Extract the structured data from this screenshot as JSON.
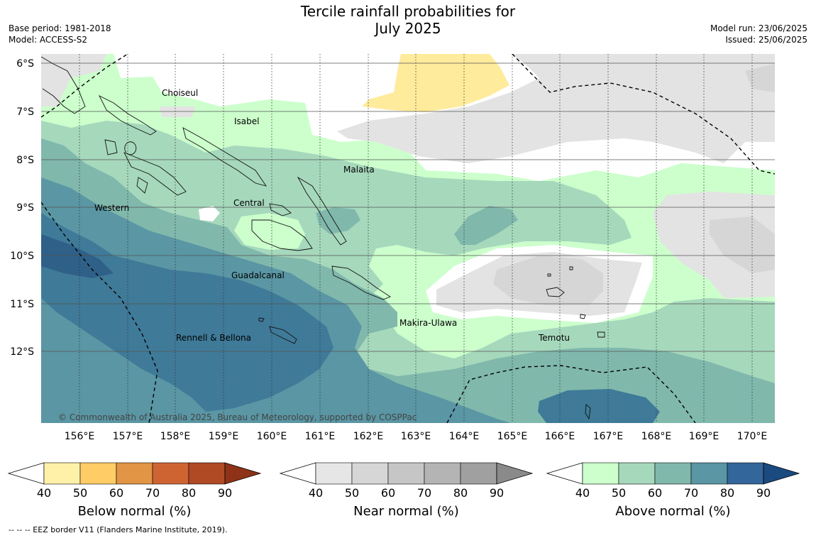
{
  "header": {
    "title_line1": "Tercile rainfall probabilities for",
    "title_line2": "July 2025",
    "base_period": "Base period: 1981-2018",
    "model": "Model: ACCESS-S2",
    "model_run": "Model run: 23/06/2025",
    "issued": "Issued: 25/06/2025"
  },
  "map": {
    "lat_labels": [
      "6°S",
      "7°S",
      "8°S",
      "9°S",
      "10°S",
      "11°S",
      "12°S"
    ],
    "lon_labels": [
      "156°E",
      "157°E",
      "158°E",
      "159°E",
      "160°E",
      "161°E",
      "162°E",
      "163°E",
      "164°E",
      "165°E",
      "166°E",
      "167°E",
      "168°E",
      "169°E",
      "170°E"
    ],
    "regions": [
      {
        "name": "Choiseul"
      },
      {
        "name": "Isabel"
      },
      {
        "name": "Malaita"
      },
      {
        "name": "Western"
      },
      {
        "name": "Central"
      },
      {
        "name": "Guadalcanal"
      },
      {
        "name": "Makira-Ulawa"
      },
      {
        "name": "Rennell & Bellona"
      },
      {
        "name": "Temotu"
      }
    ],
    "copyright": "© Commonwealth of Australia 2025, Bureau of Meteorology, supported by COSPPac"
  },
  "colorbars": [
    {
      "title": "Below normal (%)",
      "ticks": [
        "40",
        "50",
        "60",
        "70",
        "80",
        "90"
      ],
      "colors": [
        "#fff1a8",
        "#ffcc66",
        "#e19545",
        "#cf6433",
        "#b04a25",
        "#8e3218"
      ]
    },
    {
      "title": "Near normal (%)",
      "ticks": [
        "40",
        "50",
        "60",
        "70",
        "80",
        "90"
      ],
      "colors": [
        "#e6e6e6",
        "#d6d6d6",
        "#c6c6c6",
        "#b4b4b4",
        "#a0a0a0",
        "#8a8a8a"
      ]
    },
    {
      "title": "Above normal (%)",
      "ticks": [
        "40",
        "50",
        "60",
        "70",
        "80",
        "90"
      ],
      "colors": [
        "#ccffcc",
        "#a6d8bc",
        "#80b8ac",
        "#5a96a4",
        "#33669a",
        "#1a4a80"
      ]
    }
  ],
  "footer": "-- -- -- EEZ border V11 (Flanders Marine Institute, 2019)."
}
